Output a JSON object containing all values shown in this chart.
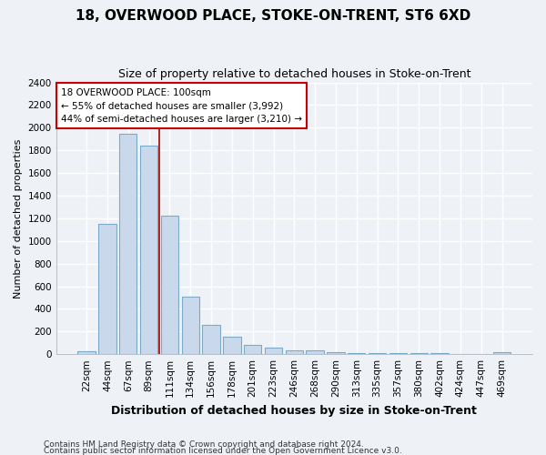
{
  "title": "18, OVERWOOD PLACE, STOKE-ON-TRENT, ST6 6XD",
  "subtitle": "Size of property relative to detached houses in Stoke-on-Trent",
  "xlabel": "Distribution of detached houses by size in Stoke-on-Trent",
  "ylabel": "Number of detached properties",
  "categories": [
    "22sqm",
    "44sqm",
    "67sqm",
    "89sqm",
    "111sqm",
    "134sqm",
    "156sqm",
    "178sqm",
    "201sqm",
    "223sqm",
    "246sqm",
    "268sqm",
    "290sqm",
    "313sqm",
    "335sqm",
    "357sqm",
    "380sqm",
    "402sqm",
    "424sqm",
    "447sqm",
    "469sqm"
  ],
  "values": [
    25,
    1150,
    1950,
    1840,
    1220,
    510,
    260,
    155,
    80,
    55,
    35,
    35,
    20,
    10,
    10,
    10,
    10,
    10,
    5,
    5,
    20
  ],
  "bar_color": "#c9d9eb",
  "bar_edge_color": "#7aaac8",
  "vline_x": 3.5,
  "vline_color": "#aa0000",
  "ylim": [
    0,
    2400
  ],
  "yticks": [
    0,
    200,
    400,
    600,
    800,
    1000,
    1200,
    1400,
    1600,
    1800,
    2000,
    2200,
    2400
  ],
  "annotation_text": "18 OVERWOOD PLACE: 100sqm\n← 55% of detached houses are smaller (3,992)\n44% of semi-detached houses are larger (3,210) →",
  "annotation_box_color": "#ffffff",
  "annotation_box_edge": "#cc0000",
  "footer1": "Contains HM Land Registry data © Crown copyright and database right 2024.",
  "footer2": "Contains public sector information licensed under the Open Government Licence v3.0.",
  "bg_color": "#eef2f7",
  "grid_color": "#ffffff",
  "title_fontsize": 11,
  "subtitle_fontsize": 9,
  "ylabel_fontsize": 8,
  "xlabel_fontsize": 9,
  "tick_fontsize": 7.5,
  "annotation_fontsize": 7.5,
  "footer_fontsize": 6.5
}
